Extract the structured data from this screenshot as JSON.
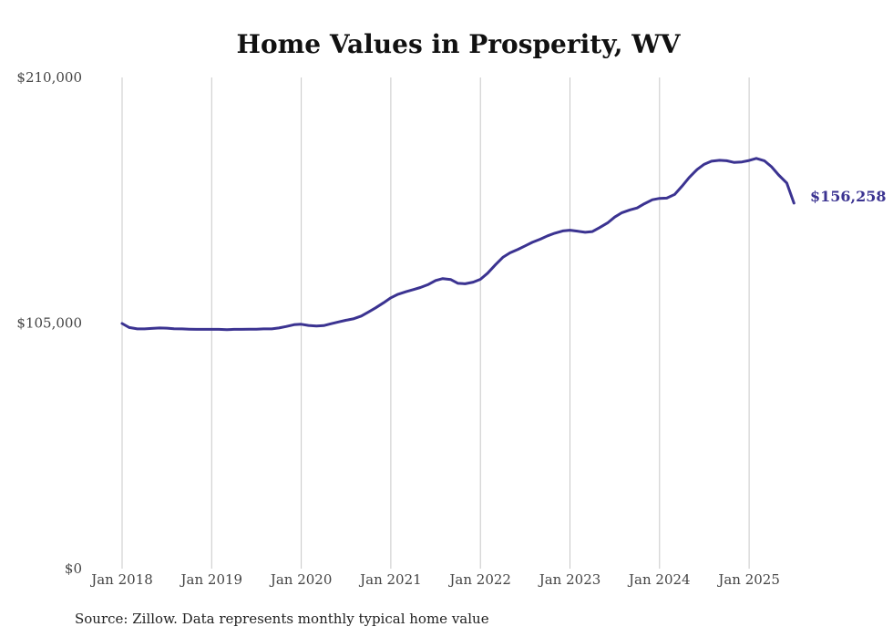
{
  "chart_data": {
    "type": "line",
    "title": "Home Values in Prosperity, WV",
    "source": "Source: Zillow. Data represents monthly typical home value",
    "xlabel": "",
    "ylabel": "",
    "ylim": [
      0,
      210000
    ],
    "y_ticks": [
      {
        "value": 0,
        "label": "$0"
      },
      {
        "value": 105000,
        "label": "$105,000"
      },
      {
        "value": 210000,
        "label": "$210,000"
      }
    ],
    "x_ticks": [
      {
        "t": 2018.0,
        "label": "Jan 2018"
      },
      {
        "t": 2019.0,
        "label": "Jan 2019"
      },
      {
        "t": 2020.0,
        "label": "Jan 2020"
      },
      {
        "t": 2021.0,
        "label": "Jan 2021"
      },
      {
        "t": 2022.0,
        "label": "Jan 2022"
      },
      {
        "t": 2023.0,
        "label": "Jan 2023"
      },
      {
        "t": 2024.0,
        "label": "Jan 2024"
      },
      {
        "t": 2025.0,
        "label": "Jan 2025"
      }
    ],
    "xlim": [
      2018.0,
      2025.5
    ],
    "grid": "vertical",
    "line_color": "#3b3391",
    "end_label": "$156,258",
    "series": [
      {
        "name": "Typical home value",
        "points": [
          [
            2018.0,
            104800
          ],
          [
            2018.08,
            103100
          ],
          [
            2018.17,
            102500
          ],
          [
            2018.25,
            102500
          ],
          [
            2018.33,
            102700
          ],
          [
            2018.42,
            102900
          ],
          [
            2018.5,
            102800
          ],
          [
            2018.58,
            102600
          ],
          [
            2018.67,
            102500
          ],
          [
            2018.75,
            102400
          ],
          [
            2018.83,
            102300
          ],
          [
            2018.92,
            102300
          ],
          [
            2019.0,
            102300
          ],
          [
            2019.08,
            102300
          ],
          [
            2019.17,
            102200
          ],
          [
            2019.25,
            102300
          ],
          [
            2019.33,
            102300
          ],
          [
            2019.42,
            102400
          ],
          [
            2019.5,
            102400
          ],
          [
            2019.58,
            102500
          ],
          [
            2019.67,
            102500
          ],
          [
            2019.75,
            102900
          ],
          [
            2019.83,
            103500
          ],
          [
            2019.92,
            104300
          ],
          [
            2020.0,
            104500
          ],
          [
            2020.08,
            104000
          ],
          [
            2020.17,
            103700
          ],
          [
            2020.25,
            103900
          ],
          [
            2020.33,
            104700
          ],
          [
            2020.42,
            105500
          ],
          [
            2020.5,
            106200
          ],
          [
            2020.58,
            106800
          ],
          [
            2020.67,
            108000
          ],
          [
            2020.75,
            109700
          ],
          [
            2020.83,
            111500
          ],
          [
            2020.92,
            113700
          ],
          [
            2021.0,
            115800
          ],
          [
            2021.08,
            117300
          ],
          [
            2021.17,
            118400
          ],
          [
            2021.25,
            119300
          ],
          [
            2021.33,
            120200
          ],
          [
            2021.42,
            121500
          ],
          [
            2021.5,
            123200
          ],
          [
            2021.58,
            124000
          ],
          [
            2021.67,
            123600
          ],
          [
            2021.75,
            122000
          ],
          [
            2021.83,
            121800
          ],
          [
            2021.92,
            122500
          ],
          [
            2022.0,
            123700
          ],
          [
            2022.08,
            126300
          ],
          [
            2022.17,
            130000
          ],
          [
            2022.25,
            133100
          ],
          [
            2022.33,
            135000
          ],
          [
            2022.42,
            136500
          ],
          [
            2022.5,
            138000
          ],
          [
            2022.58,
            139500
          ],
          [
            2022.67,
            140900
          ],
          [
            2022.75,
            142300
          ],
          [
            2022.83,
            143400
          ],
          [
            2022.92,
            144400
          ],
          [
            2023.0,
            144700
          ],
          [
            2023.08,
            144300
          ],
          [
            2023.17,
            143800
          ],
          [
            2023.25,
            144100
          ],
          [
            2023.33,
            145800
          ],
          [
            2023.42,
            147800
          ],
          [
            2023.5,
            150300
          ],
          [
            2023.58,
            152200
          ],
          [
            2023.67,
            153400
          ],
          [
            2023.75,
            154200
          ],
          [
            2023.83,
            156000
          ],
          [
            2023.92,
            157700
          ],
          [
            2024.0,
            158300
          ],
          [
            2024.08,
            158400
          ],
          [
            2024.17,
            160000
          ],
          [
            2024.25,
            163500
          ],
          [
            2024.33,
            167200
          ],
          [
            2024.42,
            170700
          ],
          [
            2024.5,
            172900
          ],
          [
            2024.58,
            174200
          ],
          [
            2024.67,
            174600
          ],
          [
            2024.75,
            174400
          ],
          [
            2024.83,
            173700
          ],
          [
            2024.92,
            173900
          ],
          [
            2025.0,
            174500
          ],
          [
            2025.08,
            175400
          ],
          [
            2025.17,
            174400
          ],
          [
            2025.25,
            171800
          ],
          [
            2025.33,
            168300
          ],
          [
            2025.42,
            164900
          ],
          [
            2025.5,
            156258
          ]
        ]
      }
    ]
  }
}
